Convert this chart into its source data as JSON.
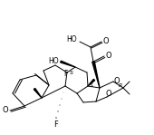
{
  "bg": "#ffffff",
  "lc": "#000000",
  "figsize": [
    1.7,
    1.49
  ],
  "dpi": 100,
  "xlim": [
    0,
    170
  ],
  "ylim": [
    0,
    149
  ]
}
